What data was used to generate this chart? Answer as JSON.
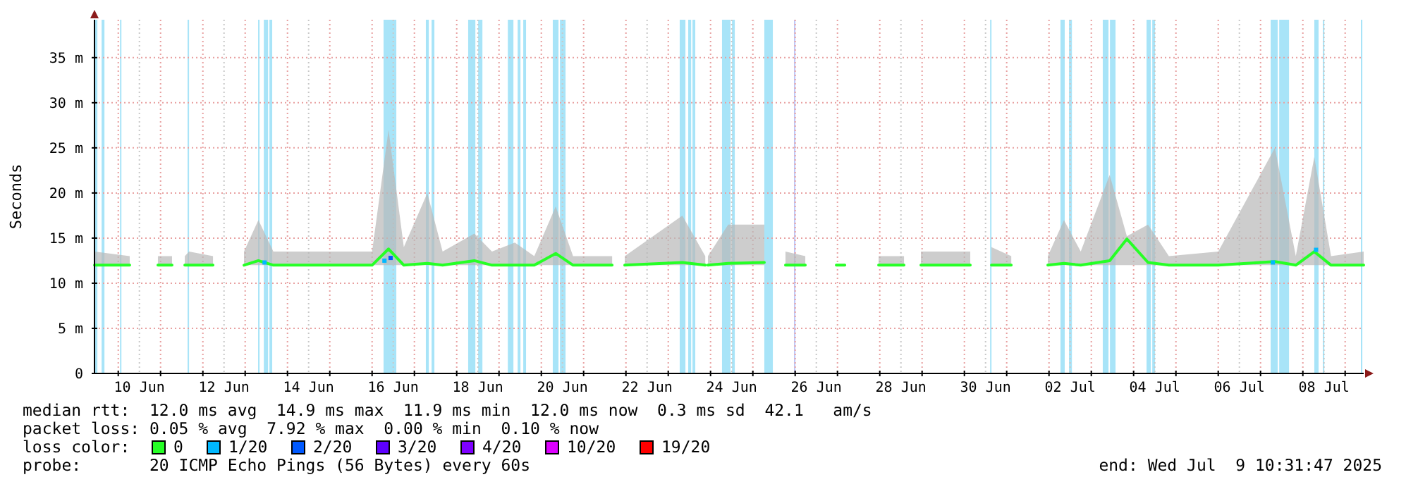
{
  "chart_data": {
    "type": "line",
    "ylabel": "Seconds",
    "legend_title": "loss color:",
    "legend": "bottom",
    "grid": true,
    "xlim": [
      "2025-06-09T10:31",
      "2025-07-09T10:31"
    ],
    "xticks": [
      {
        "value": "2025-06-10T00:00",
        "label": null
      },
      {
        "value": "2025-06-10T12:00",
        "label": "10 Jun"
      },
      {
        "value": "2025-06-11T00:00",
        "label": null
      },
      {
        "value": "2025-06-12T00:00",
        "label": null
      },
      {
        "value": "2025-06-12T12:00",
        "label": "12 Jun"
      },
      {
        "value": "2025-06-13T00:00",
        "label": null
      },
      {
        "value": "2025-06-14T00:00",
        "label": null
      },
      {
        "value": "2025-06-14T12:00",
        "label": "14 Jun"
      },
      {
        "value": "2025-06-15T00:00",
        "label": null
      },
      {
        "value": "2025-06-16T00:00",
        "label": null
      },
      {
        "value": "2025-06-16T12:00",
        "label": "16 Jun"
      },
      {
        "value": "2025-06-17T00:00",
        "label": null
      },
      {
        "value": "2025-06-18T00:00",
        "label": null
      },
      {
        "value": "2025-06-18T12:00",
        "label": "18 Jun"
      },
      {
        "value": "2025-06-19T00:00",
        "label": null
      },
      {
        "value": "2025-06-20T00:00",
        "label": null
      },
      {
        "value": "2025-06-20T12:00",
        "label": "20 Jun"
      },
      {
        "value": "2025-06-21T00:00",
        "label": null
      },
      {
        "value": "2025-06-22T00:00",
        "label": null
      },
      {
        "value": "2025-06-22T12:00",
        "label": "22 Jun"
      },
      {
        "value": "2025-06-23T00:00",
        "label": null
      },
      {
        "value": "2025-06-24T00:00",
        "label": null
      },
      {
        "value": "2025-06-24T12:00",
        "label": "24 Jun"
      },
      {
        "value": "2025-06-25T00:00",
        "label": null
      },
      {
        "value": "2025-06-26T00:00",
        "label": null
      },
      {
        "value": "2025-06-26T12:00",
        "label": "26 Jun"
      },
      {
        "value": "2025-06-27T00:00",
        "label": null
      },
      {
        "value": "2025-06-28T00:00",
        "label": null
      },
      {
        "value": "2025-06-28T12:00",
        "label": "28 Jun"
      },
      {
        "value": "2025-06-29T00:00",
        "label": null
      },
      {
        "value": "2025-06-30T00:00",
        "label": null
      },
      {
        "value": "2025-06-30T12:00",
        "label": "30 Jun"
      },
      {
        "value": "2025-07-01T00:00",
        "label": null
      },
      {
        "value": "2025-07-02T00:00",
        "label": null
      },
      {
        "value": "2025-07-02T12:00",
        "label": "02 Jul"
      },
      {
        "value": "2025-07-03T00:00",
        "label": null
      },
      {
        "value": "2025-07-04T00:00",
        "label": null
      },
      {
        "value": "2025-07-04T12:00",
        "label": "04 Jul"
      },
      {
        "value": "2025-07-05T00:00",
        "label": null
      },
      {
        "value": "2025-07-06T00:00",
        "label": null
      },
      {
        "value": "2025-07-06T12:00",
        "label": "06 Jul"
      },
      {
        "value": "2025-07-07T00:00",
        "label": null
      },
      {
        "value": "2025-07-08T00:00",
        "label": null
      },
      {
        "value": "2025-07-08T12:00",
        "label": "08 Jul"
      },
      {
        "value": "2025-07-09T00:00",
        "label": null
      }
    ],
    "ylim": [
      0,
      39.2
    ],
    "yticks": [
      {
        "value": 0,
        "label": "0"
      },
      {
        "value": 5,
        "label": "5 m"
      },
      {
        "value": 10,
        "label": "10 m"
      },
      {
        "value": 15,
        "label": "15 m"
      },
      {
        "value": 20,
        "label": "20 m"
      },
      {
        "value": 25,
        "label": "25 m"
      },
      {
        "value": 30,
        "label": "30 m"
      },
      {
        "value": 35,
        "label": "35 m"
      }
    ],
    "series": [
      {
        "name": "0",
        "color": "#26ff26",
        "x": [
          "2025-06-09T10:31",
          "2025-06-10T06:30",
          "2025-06-10T13:00",
          "2025-06-10T22:30",
          "2025-06-11T06:30",
          "2025-06-11T10:00",
          "2025-06-11T13:45",
          "2025-06-11T16:10",
          "2025-06-12T05:45",
          "2025-06-12T14:00",
          "2025-06-12T23:20",
          "2025-06-13T07:30",
          "2025-06-13T16:00",
          "2025-06-16T00:00",
          "2025-06-16T09:20",
          "2025-06-16T18:00",
          "2025-06-17T07:20",
          "2025-06-17T16:00",
          "2025-06-18T10:00",
          "2025-06-18T20:00",
          "2025-06-19T09:00",
          "2025-06-19T20:00",
          "2025-06-20T08:10",
          "2025-06-20T18:00",
          "2025-06-21T16:10",
          "2025-06-21T19:00",
          "2025-06-21T23:20",
          "2025-06-23T08:00",
          "2025-06-23T21:00",
          "2025-06-23T21:45",
          "2025-06-23T22:30",
          "2025-06-24T10:00",
          "2025-06-25T06:30",
          "2025-06-25T12:00",
          "2025-06-25T18:30",
          "2025-06-26T05:45",
          "2025-06-26T14:00",
          "2025-06-26T23:20",
          "2025-06-27T04:10",
          "2025-06-27T14:00",
          "2025-06-27T23:20",
          "2025-06-28T13:45",
          "2025-06-28T18:30",
          "2025-06-28T23:20",
          "2025-06-30T03:20",
          "2025-06-30T09:00",
          "2025-06-30T15:20",
          "2025-07-01T02:35",
          "2025-07-01T12:00",
          "2025-07-01T23:20",
          "2025-07-02T08:30",
          "2025-07-02T18:00",
          "2025-07-03T10:25",
          "2025-07-03T20:10",
          "2025-07-04T08:10",
          "2025-07-04T20:00",
          "2025-07-06T00:00",
          "2025-07-07T08:10",
          "2025-07-07T20:00",
          "2025-07-08T06:30",
          "2025-07-08T16:00",
          "2025-07-09T10:31"
        ],
        "values": [
          12,
          12,
          null,
          12,
          12,
          null,
          12,
          12,
          12,
          null,
          12,
          12.5,
          12,
          12,
          13.8,
          12,
          12.2,
          12,
          12.5,
          12,
          12,
          12,
          13.3,
          12,
          12,
          null,
          12,
          12.3,
          12,
          null,
          12,
          12.2,
          12.3,
          null,
          12,
          12,
          null,
          12,
          12,
          null,
          12,
          12,
          null,
          12,
          12,
          null,
          12,
          12,
          null,
          12,
          12.2,
          12,
          12.5,
          14.9,
          12.3,
          12,
          12,
          12.4,
          12,
          13.5,
          12,
          12
        ],
        "lower": [
          12,
          12,
          null,
          12,
          12,
          null,
          12,
          12,
          12,
          null,
          12,
          12,
          12,
          12,
          12,
          12,
          12,
          12,
          12,
          12,
          12,
          12,
          12,
          12,
          12,
          null,
          12,
          12,
          12,
          null,
          12,
          12,
          12,
          null,
          12,
          12,
          null,
          null,
          null,
          null,
          12,
          12,
          null,
          12,
          12,
          null,
          12,
          12,
          null,
          12,
          12,
          12,
          12,
          12,
          12,
          12,
          12,
          12,
          12,
          12,
          12,
          12
        ],
        "upper": [
          13.5,
          13,
          null,
          13,
          13,
          null,
          13,
          13.5,
          13,
          null,
          13.5,
          17,
          13.5,
          13.5,
          27,
          14,
          20,
          13.5,
          15.5,
          13.5,
          14.5,
          13,
          18.5,
          13,
          13,
          null,
          13,
          17.5,
          13,
          null,
          13,
          16.5,
          16.5,
          null,
          13.5,
          13,
          null,
          null,
          null,
          null,
          13,
          13,
          null,
          13.5,
          13.5,
          null,
          14,
          13,
          null,
          13,
          17,
          13.5,
          22,
          15.2,
          16.5,
          13,
          13.5,
          25,
          13,
          24,
          13,
          13.5
        ]
      },
      {
        "name": "1/20",
        "color": "#00b8ff",
        "type": "scatter",
        "x": [
          "2025-06-13T11:00",
          "2025-06-16T07:00",
          "2025-07-07T07:00",
          "2025-07-08T07:30"
        ],
        "values": [
          12.3,
          12.5,
          12.3,
          13.7
        ]
      },
      {
        "name": "2/20",
        "color": "#0059ff",
        "type": "scatter",
        "x": [
          "2025-06-16T10:30"
        ],
        "values": [
          12.8
        ]
      },
      {
        "name": "3/20",
        "color": "#5e00ff",
        "type": "scatter"
      },
      {
        "name": "4/20",
        "color": "#7e00ff",
        "type": "scatter"
      },
      {
        "name": "10/20",
        "color": "#dd00ff",
        "type": "scatter"
      },
      {
        "name": "19/20",
        "color": "#ff0000",
        "type": "scatter"
      }
    ],
    "bands": [
      {
        "axis": "x",
        "from": "2025-06-09T10:31",
        "to": "2025-06-09T12:10",
        "color": "#a8e4f8"
      },
      {
        "axis": "x",
        "from": "2025-06-09T14:34",
        "to": "2025-06-09T16:10",
        "color": "#a8e4f8"
      },
      {
        "axis": "x",
        "from": "2025-06-10T01:00",
        "to": "2025-06-10T01:45",
        "color": "#a8e4f8"
      },
      {
        "axis": "x",
        "from": "2025-06-11T15:20",
        "to": "2025-06-11T16:10",
        "color": "#a8e4f8"
      },
      {
        "axis": "x",
        "from": "2025-06-13T07:20",
        "to": "2025-06-13T08:10",
        "color": "#a8e4f8"
      },
      {
        "axis": "x",
        "from": "2025-06-13T10:35",
        "to": "2025-06-13T13:00",
        "color": "#a8e4f8"
      },
      {
        "axis": "x",
        "from": "2025-06-13T13:45",
        "to": "2025-06-13T15:20",
        "color": "#a8e4f8"
      },
      {
        "axis": "x",
        "from": "2025-06-16T06:30",
        "to": "2025-06-16T13:45",
        "color": "#a8e4f8"
      },
      {
        "axis": "x",
        "from": "2025-06-17T06:30",
        "to": "2025-06-17T08:10",
        "color": "#a8e4f8"
      },
      {
        "axis": "x",
        "from": "2025-06-17T09:45",
        "to": "2025-06-17T11:20",
        "color": "#a8e4f8"
      },
      {
        "axis": "x",
        "from": "2025-06-18T06:30",
        "to": "2025-06-18T10:35",
        "color": "#a8e4f8"
      },
      {
        "axis": "x",
        "from": "2025-06-18T12:10",
        "to": "2025-06-18T14:35",
        "color": "#a8e4f8"
      },
      {
        "axis": "x",
        "from": "2025-06-19T05:00",
        "to": "2025-06-19T08:10",
        "color": "#a8e4f8"
      },
      {
        "axis": "x",
        "from": "2025-06-19T10:35",
        "to": "2025-06-19T12:10",
        "color": "#a8e4f8"
      },
      {
        "axis": "x",
        "from": "2025-06-19T13:45",
        "to": "2025-06-19T15:20",
        "color": "#a8e4f8"
      },
      {
        "axis": "x",
        "from": "2025-06-20T06:30",
        "to": "2025-06-20T09:45",
        "color": "#a8e4f8"
      },
      {
        "axis": "x",
        "from": "2025-06-20T10:35",
        "to": "2025-06-20T13:45",
        "color": "#a8e4f8"
      },
      {
        "axis": "x",
        "from": "2025-06-23T06:30",
        "to": "2025-06-23T09:45",
        "color": "#a8e4f8"
      },
      {
        "axis": "x",
        "from": "2025-06-23T11:20",
        "to": "2025-06-23T13:00",
        "color": "#a8e4f8"
      },
      {
        "axis": "x",
        "from": "2025-06-23T13:45",
        "to": "2025-06-23T15:20",
        "color": "#a8e4f8"
      },
      {
        "axis": "x",
        "from": "2025-06-24T06:30",
        "to": "2025-06-24T11:20",
        "color": "#a8e4f8"
      },
      {
        "axis": "x",
        "from": "2025-06-24T12:10",
        "to": "2025-06-24T13:45",
        "color": "#a8e4f8"
      },
      {
        "axis": "x",
        "from": "2025-06-25T06:30",
        "to": "2025-06-25T11:20",
        "color": "#a8e4f8"
      },
      {
        "axis": "x",
        "from": "2025-06-25T23:20",
        "to": "2025-06-26T00:10",
        "color": "#c0c8f8"
      },
      {
        "axis": "x",
        "from": "2025-06-30T14:35",
        "to": "2025-06-30T15:20",
        "color": "#a8e4f8"
      },
      {
        "axis": "x",
        "from": "2025-07-02T06:30",
        "to": "2025-07-02T08:55",
        "color": "#a8e4f8"
      },
      {
        "axis": "x",
        "from": "2025-07-02T11:20",
        "to": "2025-07-02T13:00",
        "color": "#a8e4f8"
      },
      {
        "axis": "x",
        "from": "2025-07-03T06:30",
        "to": "2025-07-03T09:45",
        "color": "#a8e4f8"
      },
      {
        "axis": "x",
        "from": "2025-07-03T10:35",
        "to": "2025-07-03T13:45",
        "color": "#a8e4f8"
      },
      {
        "axis": "x",
        "from": "2025-07-04T07:20",
        "to": "2025-07-04T09:45",
        "color": "#a8e4f8"
      },
      {
        "axis": "x",
        "from": "2025-07-04T10:35",
        "to": "2025-07-04T12:10",
        "color": "#a8e4f8"
      },
      {
        "axis": "x",
        "from": "2025-07-07T05:45",
        "to": "2025-07-07T09:45",
        "color": "#a8e4f8"
      },
      {
        "axis": "x",
        "from": "2025-07-07T10:35",
        "to": "2025-07-07T16:10",
        "color": "#a8e4f8"
      },
      {
        "axis": "x",
        "from": "2025-07-08T06:30",
        "to": "2025-07-08T08:55",
        "color": "#a8e4f8"
      },
      {
        "axis": "x",
        "from": "2025-07-08T11:20",
        "to": "2025-07-08T12:10",
        "color": "#a8e4f8"
      },
      {
        "axis": "x",
        "from": "2025-07-09T08:55",
        "to": "2025-07-09T09:45",
        "color": "#a8e4f8"
      }
    ],
    "annotations": [
      "median rtt:  12.0 ms avg  14.9 ms max  11.9 ms min  12.0 ms now  0.3 ms sd  42.1   am/s",
      "packet loss: 0.05 % avg  7.92 % max  0.00 % min  0.10 % now",
      "probe:       20 ICMP Echo Pings (56 Bytes) every 60s",
      "end: Wed Jul  9 10:31:47 2025"
    ]
  }
}
